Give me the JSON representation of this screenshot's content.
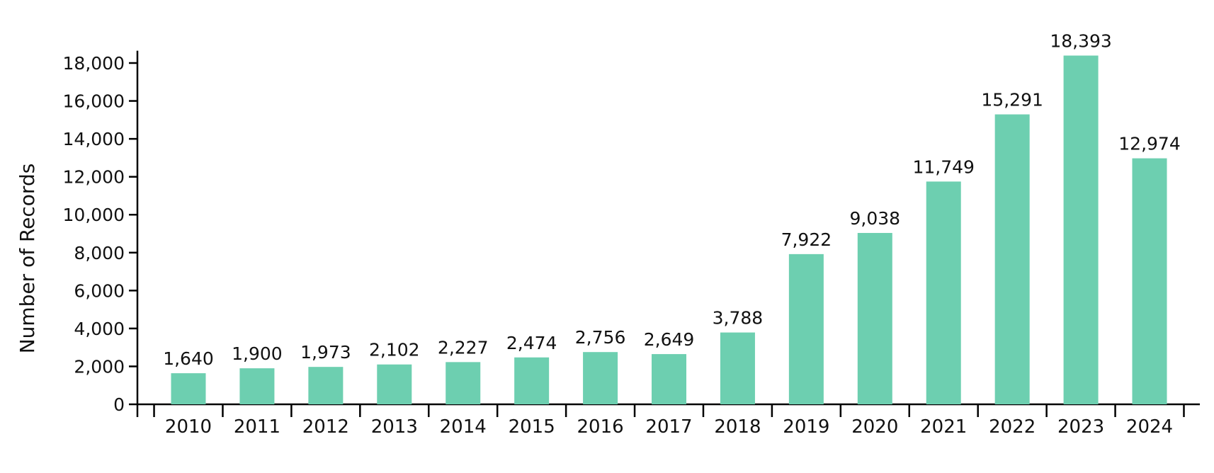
{
  "chart_data": {
    "type": "bar",
    "title": "",
    "xlabel": "",
    "ylabel": "Number of Records",
    "ylim": [
      0,
      18500
    ],
    "yticks": [
      0,
      2000,
      4000,
      6000,
      8000,
      10000,
      12000,
      14000,
      16000,
      18000
    ],
    "ytick_labels": [
      "0",
      "2,000",
      "4,000",
      "6,000",
      "8,000",
      "10,000",
      "12,000",
      "14,000",
      "16,000",
      "18,000"
    ],
    "categories": [
      "2010",
      "2011",
      "2012",
      "2013",
      "2014",
      "2015",
      "2016",
      "2017",
      "2018",
      "2019",
      "2020",
      "2021",
      "2022",
      "2023",
      "2024"
    ],
    "values": [
      1640,
      1900,
      1973,
      2102,
      2227,
      2474,
      2756,
      2649,
      3788,
      7922,
      9038,
      11749,
      15291,
      18393,
      12974
    ],
    "data_labels": [
      "1,640",
      "1,900",
      "1,973",
      "2,102",
      "2,227",
      "2,474",
      "2,756",
      "2,649",
      "3,788",
      "7,922",
      "9,038",
      "11,749",
      "15,291",
      "18,393",
      "12,974"
    ],
    "bar_color": "#6dcfb0",
    "grid": false,
    "legend": "none"
  }
}
